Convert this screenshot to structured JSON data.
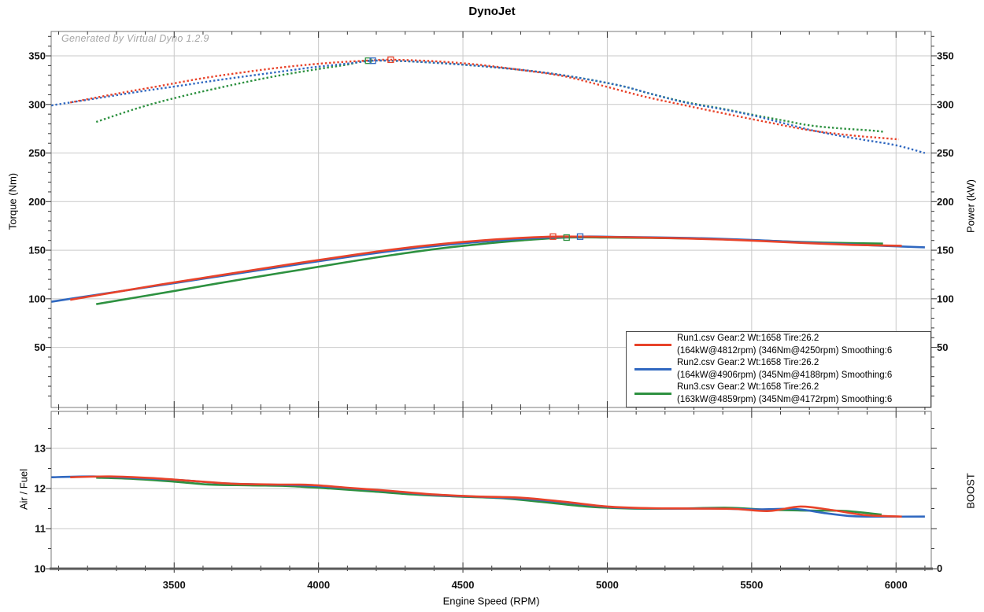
{
  "title": "DynoJet",
  "watermark": "Generated by Virtual Dyno 1.2.9",
  "colors": {
    "run1": "#e8432a",
    "run2": "#3068c0",
    "run3": "#2d9140",
    "grid": "#c9c9c9",
    "panel_border": "#7a7a7a",
    "tick": "#333333",
    "text": "#111111",
    "watermark": "#a6a6a6"
  },
  "axes": {
    "x": {
      "label": "Engine Speed (RPM)",
      "major_ticks": [
        3500,
        4000,
        4500,
        5000,
        5500,
        6000
      ],
      "minor_step": 100,
      "range": [
        3074,
        6122
      ]
    },
    "torque": {
      "label": "Torque (Nm)",
      "major_ticks": [
        50,
        100,
        150,
        200,
        250,
        300,
        350
      ],
      "minor_step": 10
    },
    "power": {
      "label": "Power (kW)",
      "major_ticks": [
        50,
        100,
        150,
        200,
        250,
        300,
        350
      ],
      "minor_step": 10
    },
    "air_fuel": {
      "label": "Air / Fuel",
      "major_ticks": [
        10,
        11,
        12,
        13
      ],
      "minor_step": 0.5
    },
    "boost": {
      "label": "BOOST",
      "major_ticks": [
        0
      ]
    }
  },
  "legend": [
    {
      "line1": "Run1.csv Gear:2 Wt:1658 Tire:26.2",
      "line2": "(164kW@4812rpm) (346Nm@4250rpm) Smoothing:6",
      "color": "#e8432a"
    },
    {
      "line1": "Run2.csv Gear:2 Wt:1658 Tire:26.2",
      "line2": "(164kW@4906rpm) (345Nm@4188rpm) Smoothing:6",
      "color": "#3068c0"
    },
    {
      "line1": "Run3.csv Gear:2 Wt:1658 Tire:26.2",
      "line2": "(163kW@4859rpm) (345Nm@4172rpm) Smoothing:6",
      "color": "#2d9140"
    }
  ],
  "chart_data": [
    {
      "type": "line",
      "panel": "top",
      "title": "DynoJet",
      "xlabel": "Engine Speed (RPM)",
      "ylabel_left": "Torque (Nm)",
      "ylabel_right": "Power (kW)",
      "xlim": [
        3074,
        6122
      ],
      "ylim": [
        -12,
        375
      ],
      "grid": true,
      "legend_position": "bottom-right",
      "series": [
        {
          "name": "Run3 Torque (Nm)",
          "color": "#2d9140",
          "style": "dotted",
          "peak": {
            "rpm": 4172,
            "value": 345
          },
          "points": [
            [
              3230,
              282
            ],
            [
              3330,
              292
            ],
            [
              3430,
              301
            ],
            [
              3550,
              310
            ],
            [
              3700,
              320
            ],
            [
              3850,
              329
            ],
            [
              4000,
              336.5
            ],
            [
              4100,
              341
            ],
            [
              4172,
              345
            ],
            [
              4300,
              344.5
            ],
            [
              4450,
              342
            ],
            [
              4600,
              338.5
            ],
            [
              4750,
              334
            ],
            [
              4900,
              327.5
            ],
            [
              5050,
              319
            ],
            [
              5150,
              311
            ],
            [
              5270,
              302.5
            ],
            [
              5400,
              295.5
            ],
            [
              5500,
              289.5
            ],
            [
              5600,
              284
            ],
            [
              5700,
              278.5
            ],
            [
              5800,
              275.5
            ],
            [
              5900,
              273.5
            ],
            [
              5955,
              272
            ]
          ]
        },
        {
          "name": "Run2 Torque (Nm)",
          "color": "#3068c0",
          "style": "dotted",
          "peak": {
            "rpm": 4188,
            "value": 345
          },
          "points": [
            [
              3075,
              299
            ],
            [
              3225,
              306
            ],
            [
              3375,
              313
            ],
            [
              3525,
              319.5
            ],
            [
              3675,
              326
            ],
            [
              3825,
              332
            ],
            [
              3975,
              338
            ],
            [
              4100,
              342
            ],
            [
              4188,
              345
            ],
            [
              4300,
              344.5
            ],
            [
              4450,
              342
            ],
            [
              4600,
              338.5
            ],
            [
              4750,
              334
            ],
            [
              4900,
              327.5
            ],
            [
              5050,
              319
            ],
            [
              5150,
              311
            ],
            [
              5270,
              302
            ],
            [
              5400,
              295
            ],
            [
              5500,
              289
            ],
            [
              5600,
              281.5
            ],
            [
              5700,
              274
            ],
            [
              5800,
              268
            ],
            [
              5900,
              263
            ],
            [
              6000,
              258
            ],
            [
              6100,
              250
            ]
          ]
        },
        {
          "name": "Run1 Torque (Nm)",
          "color": "#e8432a",
          "style": "dotted",
          "peak": {
            "rpm": 4250,
            "value": 346
          },
          "points": [
            [
              3140,
              302
            ],
            [
              3300,
              311
            ],
            [
              3450,
              319
            ],
            [
              3600,
              327
            ],
            [
              3750,
              333.5
            ],
            [
              3900,
              339
            ],
            [
              4050,
              343
            ],
            [
              4180,
              345.3
            ],
            [
              4250,
              346
            ],
            [
              4400,
              344.5
            ],
            [
              4550,
              341
            ],
            [
              4700,
              335.5
            ],
            [
              4850,
              329
            ],
            [
              5000,
              318
            ],
            [
              5130,
              308
            ],
            [
              5270,
              299
            ],
            [
              5400,
              291
            ],
            [
              5550,
              282
            ],
            [
              5700,
              273.5
            ],
            [
              5850,
              268
            ],
            [
              5950,
              265.5
            ],
            [
              6010,
              264
            ]
          ]
        },
        {
          "name": "Run3 Power (kW)",
          "color": "#2d9140",
          "style": "solid",
          "peak": {
            "rpm": 4859,
            "value": 163
          },
          "points": [
            [
              3230,
              94.5
            ],
            [
              3370,
              101.5
            ],
            [
              3510,
              108.5
            ],
            [
              3650,
              115.8
            ],
            [
              3800,
              123.2
            ],
            [
              3950,
              130.5
            ],
            [
              4100,
              137.8
            ],
            [
              4250,
              144.8
            ],
            [
              4400,
              151
            ],
            [
              4550,
              156
            ],
            [
              4700,
              160
            ],
            [
              4859,
              163
            ],
            [
              5000,
              163
            ],
            [
              5150,
              162.6
            ],
            [
              5300,
              162
            ],
            [
              5450,
              160.8
            ],
            [
              5600,
              159.2
            ],
            [
              5750,
              157.8
            ],
            [
              5955,
              156.8
            ]
          ]
        },
        {
          "name": "Run2 Power (kW)",
          "color": "#3068c0",
          "style": "solid",
          "peak": {
            "rpm": 4906,
            "value": 164
          },
          "points": [
            [
              3075,
              97
            ],
            [
              3225,
              103.8
            ],
            [
              3375,
              110.5
            ],
            [
              3525,
              117.2
            ],
            [
              3675,
              124
            ],
            [
              3825,
              130.8
            ],
            [
              3975,
              137.5
            ],
            [
              4125,
              144
            ],
            [
              4275,
              150
            ],
            [
              4425,
              155
            ],
            [
              4575,
              159
            ],
            [
              4725,
              162
            ],
            [
              4906,
              164
            ],
            [
              5060,
              163.6
            ],
            [
              5210,
              163
            ],
            [
              5360,
              162
            ],
            [
              5510,
              160.4
            ],
            [
              5660,
              158.4
            ],
            [
              5810,
              156.4
            ],
            [
              5960,
              154.4
            ],
            [
              6100,
              153
            ]
          ]
        },
        {
          "name": "Run1 Power (kW)",
          "color": "#e8432a",
          "style": "solid",
          "peak": {
            "rpm": 4812,
            "value": 164
          },
          "points": [
            [
              3140,
              99
            ],
            [
              3300,
              107
            ],
            [
              3450,
              114.5
            ],
            [
              3600,
              121.5
            ],
            [
              3750,
              128.5
            ],
            [
              3900,
              135.5
            ],
            [
              4050,
              142
            ],
            [
              4200,
              148.5
            ],
            [
              4350,
              154
            ],
            [
              4500,
              158.5
            ],
            [
              4650,
              161.8
            ],
            [
              4812,
              164
            ],
            [
              4950,
              163.8
            ],
            [
              5100,
              163.2
            ],
            [
              5250,
              162.3
            ],
            [
              5400,
              161
            ],
            [
              5550,
              159.2
            ],
            [
              5700,
              157.2
            ],
            [
              5850,
              155.5
            ],
            [
              6020,
              154.5
            ]
          ]
        }
      ]
    },
    {
      "type": "line",
      "panel": "bottom",
      "xlabel": "Engine Speed (RPM)",
      "ylabel_left": "Air / Fuel",
      "ylabel_right": "BOOST",
      "xlim": [
        3074,
        6122
      ],
      "ylim": [
        10,
        13.92
      ],
      "grid": true,
      "series": [
        {
          "name": "Run3 Air/Fuel",
          "color": "#2d9140",
          "style": "solid",
          "points": [
            [
              3230,
              12.27
            ],
            [
              3360,
              12.24
            ],
            [
              3500,
              12.17
            ],
            [
              3620,
              12.1
            ],
            [
              3760,
              12.08
            ],
            [
              3900,
              12.06
            ],
            [
              4040,
              12.0
            ],
            [
              4180,
              11.93
            ],
            [
              4330,
              11.85
            ],
            [
              4480,
              11.8
            ],
            [
              4630,
              11.76
            ],
            [
              4780,
              11.66
            ],
            [
              4930,
              11.55
            ],
            [
              5080,
              11.5
            ],
            [
              5250,
              11.5
            ],
            [
              5420,
              11.52
            ],
            [
              5550,
              11.47
            ],
            [
              5700,
              11.45
            ],
            [
              5820,
              11.44
            ],
            [
              5950,
              11.35
            ]
          ]
        },
        {
          "name": "Run2 Air/Fuel",
          "color": "#3068c0",
          "style": "solid",
          "points": [
            [
              3075,
              12.28
            ],
            [
              3220,
              12.3
            ],
            [
              3370,
              12.26
            ],
            [
              3520,
              12.21
            ],
            [
              3670,
              12.13
            ],
            [
              3820,
              12.1
            ],
            [
              3970,
              12.07
            ],
            [
              4120,
              12.0
            ],
            [
              4270,
              11.92
            ],
            [
              4420,
              11.83
            ],
            [
              4570,
              11.79
            ],
            [
              4720,
              11.74
            ],
            [
              4870,
              11.64
            ],
            [
              5020,
              11.53
            ],
            [
              5200,
              11.5
            ],
            [
              5380,
              11.5
            ],
            [
              5520,
              11.48
            ],
            [
              5650,
              11.49
            ],
            [
              5760,
              11.38
            ],
            [
              5850,
              11.31
            ],
            [
              5960,
              11.3
            ],
            [
              6100,
              11.3
            ]
          ]
        },
        {
          "name": "Run1 Air/Fuel",
          "color": "#e8432a",
          "style": "solid",
          "points": [
            [
              3140,
              12.28
            ],
            [
              3280,
              12.3
            ],
            [
              3420,
              12.26
            ],
            [
              3560,
              12.19
            ],
            [
              3700,
              12.12
            ],
            [
              3840,
              12.1
            ],
            [
              3970,
              12.09
            ],
            [
              4100,
              12.02
            ],
            [
              4250,
              11.94
            ],
            [
              4400,
              11.85
            ],
            [
              4550,
              11.8
            ],
            [
              4700,
              11.77
            ],
            [
              4850,
              11.67
            ],
            [
              5000,
              11.55
            ],
            [
              5150,
              11.51
            ],
            [
              5300,
              11.5
            ],
            [
              5440,
              11.49
            ],
            [
              5560,
              11.44
            ],
            [
              5670,
              11.55
            ],
            [
              5780,
              11.46
            ],
            [
              5890,
              11.34
            ],
            [
              6020,
              11.3
            ]
          ]
        }
      ]
    }
  ]
}
